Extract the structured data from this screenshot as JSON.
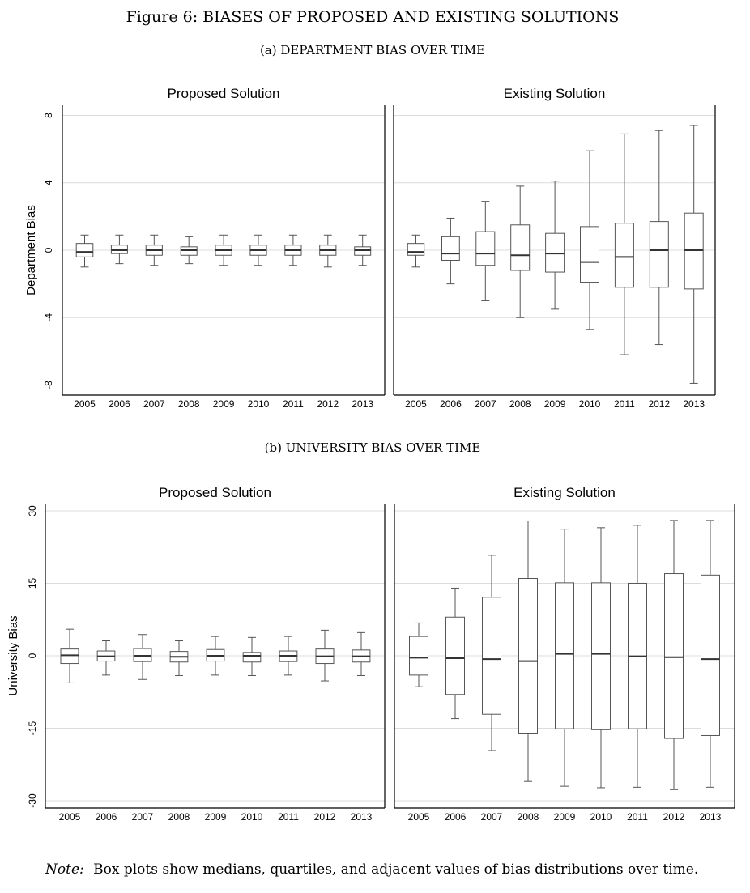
{
  "figure": {
    "title": "Figure 6: BIASES OF PROPOSED AND EXISTING SOLUTIONS",
    "note_label": "Note:",
    "note_text": "Box plots show medians, quartiles, and adjacent values of bias distributions over time."
  },
  "chart_data": [
    {
      "type": "box",
      "subtitle": "(a) DEPARTMENT BIAS OVER TIME",
      "ylabel": "Department Bias",
      "ylim": [
        -8.6,
        8.6
      ],
      "yticks": [
        -8,
        -4,
        0,
        4,
        8
      ],
      "grid": true,
      "categories": [
        "2005",
        "2006",
        "2007",
        "2008",
        "2009",
        "2010",
        "2011",
        "2012",
        "2013"
      ],
      "panels": [
        {
          "name": "Proposed Solution",
          "boxes": [
            {
              "low": -1.0,
              "q1": -0.4,
              "median": -0.1,
              "q3": 0.4,
              "high": 0.9
            },
            {
              "low": -0.8,
              "q1": -0.2,
              "median": 0.0,
              "q3": 0.3,
              "high": 0.9
            },
            {
              "low": -0.9,
              "q1": -0.3,
              "median": 0.0,
              "q3": 0.3,
              "high": 0.9
            },
            {
              "low": -0.8,
              "q1": -0.3,
              "median": 0.0,
              "q3": 0.2,
              "high": 0.8
            },
            {
              "low": -0.9,
              "q1": -0.3,
              "median": 0.0,
              "q3": 0.3,
              "high": 0.9
            },
            {
              "low": -0.9,
              "q1": -0.3,
              "median": 0.0,
              "q3": 0.3,
              "high": 0.9
            },
            {
              "low": -0.9,
              "q1": -0.3,
              "median": 0.0,
              "q3": 0.3,
              "high": 0.9
            },
            {
              "low": -1.0,
              "q1": -0.3,
              "median": 0.0,
              "q3": 0.3,
              "high": 0.9
            },
            {
              "low": -0.9,
              "q1": -0.3,
              "median": 0.0,
              "q3": 0.2,
              "high": 0.9
            }
          ]
        },
        {
          "name": "Existing Solution",
          "boxes": [
            {
              "low": -1.0,
              "q1": -0.3,
              "median": -0.1,
              "q3": 0.4,
              "high": 0.9
            },
            {
              "low": -2.0,
              "q1": -0.6,
              "median": -0.2,
              "q3": 0.8,
              "high": 1.9
            },
            {
              "low": -3.0,
              "q1": -0.9,
              "median": -0.2,
              "q3": 1.1,
              "high": 2.9
            },
            {
              "low": -4.0,
              "q1": -1.2,
              "median": -0.3,
              "q3": 1.5,
              "high": 3.8
            },
            {
              "low": -3.5,
              "q1": -1.3,
              "median": -0.2,
              "q3": 1.0,
              "high": 4.1
            },
            {
              "low": -4.7,
              "q1": -1.9,
              "median": -0.7,
              "q3": 1.4,
              "high": 5.9
            },
            {
              "low": -6.2,
              "q1": -2.2,
              "median": -0.4,
              "q3": 1.6,
              "high": 6.9
            },
            {
              "low": -5.6,
              "q1": -2.2,
              "median": 0.0,
              "q3": 1.7,
              "high": 7.1
            },
            {
              "low": -7.9,
              "q1": -2.3,
              "median": 0.0,
              "q3": 2.2,
              "high": 7.4
            }
          ]
        }
      ]
    },
    {
      "type": "box",
      "subtitle": "(b) UNIVERSITY BIAS OVER TIME",
      "ylabel": "University Bias",
      "ylim": [
        -31.5,
        31.5
      ],
      "yticks": [
        -30,
        -15,
        0,
        15,
        30
      ],
      "grid": true,
      "categories": [
        "2005",
        "2006",
        "2007",
        "2008",
        "2009",
        "2010",
        "2011",
        "2012",
        "2013"
      ],
      "panels": [
        {
          "name": "Proposed Solution",
          "boxes": [
            {
              "low": -5.6,
              "q1": -1.6,
              "median": 0.1,
              "q3": 1.4,
              "high": 5.5
            },
            {
              "low": -4.0,
              "q1": -1.1,
              "median": -0.1,
              "q3": 1.0,
              "high": 3.1
            },
            {
              "low": -4.9,
              "q1": -1.2,
              "median": 0.0,
              "q3": 1.5,
              "high": 4.4
            },
            {
              "low": -4.1,
              "q1": -1.3,
              "median": -0.2,
              "q3": 0.9,
              "high": 3.1
            },
            {
              "low": -4.0,
              "q1": -1.1,
              "median": 0.0,
              "q3": 1.3,
              "high": 4.0
            },
            {
              "low": -4.1,
              "q1": -1.3,
              "median": 0.0,
              "q3": 0.7,
              "high": 3.8
            },
            {
              "low": -4.0,
              "q1": -1.2,
              "median": 0.0,
              "q3": 1.0,
              "high": 4.0
            },
            {
              "low": -5.2,
              "q1": -1.6,
              "median": -0.1,
              "q3": 1.4,
              "high": 5.3
            },
            {
              "low": -4.1,
              "q1": -1.3,
              "median": -0.1,
              "q3": 1.2,
              "high": 4.8
            }
          ]
        },
        {
          "name": "Existing Solution",
          "boxes": [
            {
              "low": -6.4,
              "q1": -4.0,
              "median": -0.4,
              "q3": 4.0,
              "high": 6.8
            },
            {
              "low": -13.0,
              "q1": -8.0,
              "median": -0.5,
              "q3": 8.0,
              "high": 14.0
            },
            {
              "low": -19.6,
              "q1": -12.1,
              "median": -0.7,
              "q3": 12.1,
              "high": 20.8
            },
            {
              "low": -26.0,
              "q1": -16.0,
              "median": -1.1,
              "q3": 16.0,
              "high": 27.9
            },
            {
              "low": -27.0,
              "q1": -15.1,
              "median": 0.4,
              "q3": 15.1,
              "high": 26.2
            },
            {
              "low": -27.3,
              "q1": -15.3,
              "median": 0.4,
              "q3": 15.1,
              "high": 26.5
            },
            {
              "low": -27.2,
              "q1": -15.1,
              "median": -0.1,
              "q3": 15.0,
              "high": 27.0
            },
            {
              "low": -27.7,
              "q1": -17.1,
              "median": -0.3,
              "q3": 17.0,
              "high": 28.0
            },
            {
              "low": -27.2,
              "q1": -16.5,
              "median": -0.7,
              "q3": 16.7,
              "high": 28.0
            }
          ]
        }
      ]
    }
  ]
}
